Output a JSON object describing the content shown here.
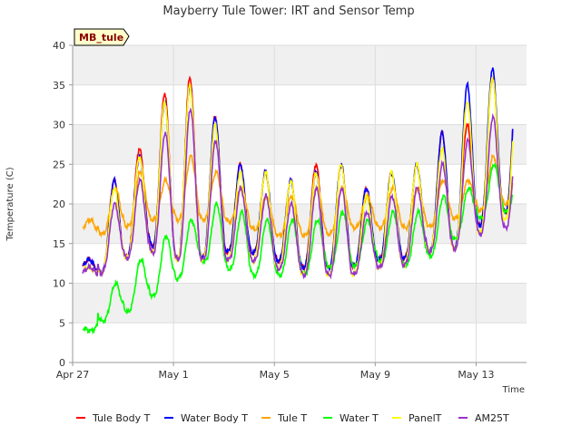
{
  "chart_data": {
    "type": "line",
    "title": "Mayberry Tule Tower: IRT and Sensor Temp",
    "xlabel": "Time",
    "ylabel": "Temperature (C)",
    "site_badge": "MB_tule",
    "xlim": [
      0,
      18.0
    ],
    "ylim": [
      0,
      40
    ],
    "yticks": [
      0,
      5,
      10,
      15,
      20,
      25,
      30,
      35,
      40
    ],
    "xticks": [
      {
        "value": 0,
        "label": "Apr 27"
      },
      {
        "value": 4,
        "label": "May 1"
      },
      {
        "value": 8,
        "label": "May 5"
      },
      {
        "value": 12,
        "label": "May 9"
      },
      {
        "value": 16,
        "label": "May 13"
      }
    ],
    "grid": true,
    "legend_position": "bottom",
    "x_unit": "days since Apr 27",
    "days": [
      "Apr 27",
      "Apr 28",
      "Apr 29",
      "Apr 30",
      "May 1",
      "May 2",
      "May 3",
      "May 4",
      "May 5",
      "May 6",
      "May 7",
      "May 8",
      "May 9",
      "May 10",
      "May 11",
      "May 12",
      "May 13",
      "May 14"
    ],
    "series": [
      {
        "name": "Tule Body T",
        "color": "#ff0000",
        "daily_min": [
          12,
          11,
          13,
          15,
          13,
          13,
          14,
          14,
          13,
          12,
          12,
          12,
          13,
          13,
          14,
          14,
          17,
          19
        ],
        "daily_max": [
          13,
          23,
          27,
          34,
          36,
          31,
          25,
          24,
          23,
          25,
          25,
          22,
          24,
          25,
          29,
          30,
          36,
          38
        ]
      },
      {
        "name": "Water Body T",
        "color": "#0000ff",
        "daily_min": [
          12,
          11,
          13,
          15,
          13,
          13,
          14,
          14,
          13,
          12,
          12,
          12,
          13,
          13,
          14,
          14,
          17,
          19
        ],
        "daily_max": [
          13,
          23,
          26,
          33,
          35,
          31,
          25,
          24,
          23,
          24,
          25,
          22,
          24,
          25,
          29,
          35,
          37,
          38
        ]
      },
      {
        "name": "Tule T",
        "color": "#ffa500",
        "daily_min": [
          17,
          16,
          17,
          18,
          18,
          18,
          18,
          17,
          16,
          16,
          16,
          17,
          17,
          17,
          17,
          18,
          19,
          20
        ],
        "daily_max": [
          18,
          22,
          24,
          23,
          26,
          24,
          22,
          21,
          21,
          22,
          22,
          21,
          22,
          22,
          23,
          23,
          26,
          26
        ]
      },
      {
        "name": "Water T",
        "color": "#00ff00",
        "daily_min": [
          4,
          5,
          6,
          8,
          10,
          13,
          12,
          11,
          11,
          11,
          12,
          12,
          13,
          12,
          13,
          15,
          18,
          19
        ],
        "daily_max": [
          4,
          10,
          13,
          16,
          18,
          20,
          19,
          18,
          18,
          18,
          19,
          18,
          19,
          19,
          21,
          22,
          25,
          25
        ]
      },
      {
        "name": "PanelT",
        "color": "#ffff00",
        "daily_min": [
          11,
          11,
          13,
          14,
          13,
          13,
          13,
          13,
          12,
          11,
          11,
          11,
          12,
          12,
          14,
          14,
          16,
          18
        ],
        "daily_max": [
          12,
          22,
          26,
          33,
          35,
          30,
          24,
          24,
          23,
          24,
          25,
          21,
          24,
          25,
          27,
          33,
          36,
          36
        ]
      },
      {
        "name": "AM25T",
        "color": "#9932cc",
        "daily_min": [
          11,
          11,
          13,
          14,
          13,
          13,
          13,
          13,
          12,
          11,
          11,
          11,
          12,
          12,
          14,
          14,
          16,
          17
        ],
        "daily_max": [
          12,
          20,
          23,
          29,
          32,
          28,
          22,
          21,
          20,
          22,
          22,
          19,
          21,
          22,
          25,
          28,
          31,
          31
        ]
      }
    ]
  }
}
